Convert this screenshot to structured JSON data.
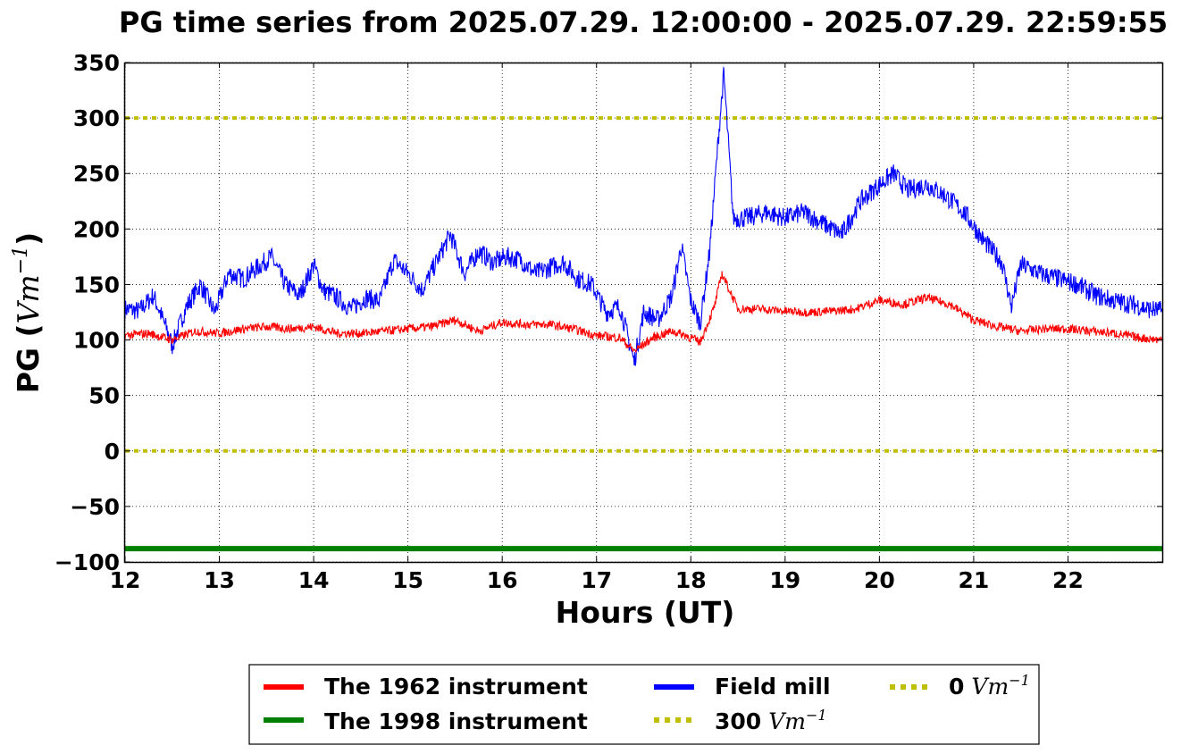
{
  "chart_data": {
    "type": "line",
    "title": "PG time series from 2025.07.29. 12:00:00 - 2025.07.29. 22:59:55",
    "xlabel": "Hours (UT)",
    "ylabel": "PG (Vm⁻¹)",
    "xlim": [
      12,
      23
    ],
    "ylim": [
      -100,
      350
    ],
    "xticks": [
      12,
      13,
      14,
      15,
      16,
      17,
      18,
      19,
      20,
      21,
      22
    ],
    "yticks": [
      -100,
      -50,
      0,
      50,
      100,
      150,
      200,
      250,
      300,
      350
    ],
    "ytick_labels": [
      "−100",
      "−50",
      "0",
      "50",
      "100",
      "150",
      "200",
      "250",
      "300",
      "350"
    ],
    "grid": true,
    "legend_position": "bottom-center, below plot, 3 columns",
    "series": [
      {
        "name": "The 1962 instrument",
        "color": "#ff0000",
        "style": "solid",
        "x": [
          12.0,
          12.25,
          12.5,
          12.75,
          13.0,
          13.25,
          13.5,
          13.75,
          14.0,
          14.25,
          14.5,
          14.75,
          15.0,
          15.25,
          15.5,
          15.75,
          16.0,
          16.25,
          16.5,
          16.75,
          17.0,
          17.25,
          17.4,
          17.6,
          17.8,
          17.95,
          18.1,
          18.25,
          18.33,
          18.5,
          18.75,
          19.0,
          19.25,
          19.5,
          19.75,
          20.0,
          20.25,
          20.5,
          20.75,
          21.0,
          21.25,
          21.5,
          21.75,
          22.0,
          22.25,
          22.5,
          22.75,
          23.0
        ],
        "y": [
          104,
          106,
          100,
          108,
          106,
          110,
          112,
          110,
          112,
          106,
          106,
          108,
          110,
          112,
          118,
          108,
          116,
          114,
          114,
          110,
          104,
          102,
          90,
          102,
          108,
          104,
          98,
          130,
          160,
          128,
          128,
          126,
          125,
          126,
          128,
          136,
          132,
          138,
          132,
          118,
          112,
          108,
          110,
          110,
          108,
          106,
          102,
          100
        ]
      },
      {
        "name": "The 1998 instrument",
        "color": "#008000",
        "style": "solid",
        "x": [
          12.0,
          23.0
        ],
        "y": [
          -88,
          -88
        ]
      },
      {
        "name": "Field mill",
        "color": "#0000ff",
        "style": "solid",
        "x": [
          12.0,
          12.15,
          12.3,
          12.45,
          12.5,
          12.65,
          12.8,
          12.95,
          13.1,
          13.25,
          13.4,
          13.55,
          13.7,
          13.85,
          14.0,
          14.1,
          14.25,
          14.4,
          14.55,
          14.7,
          14.85,
          15.0,
          15.15,
          15.3,
          15.45,
          15.6,
          15.75,
          15.9,
          16.05,
          16.2,
          16.35,
          16.5,
          16.65,
          16.8,
          16.95,
          17.1,
          17.25,
          17.4,
          17.5,
          17.65,
          17.8,
          17.9,
          18.0,
          18.1,
          18.2,
          18.3,
          18.35,
          18.45,
          18.6,
          18.8,
          19.0,
          19.2,
          19.4,
          19.6,
          19.8,
          20.0,
          20.15,
          20.3,
          20.5,
          20.7,
          20.9,
          21.1,
          21.3,
          21.4,
          21.5,
          21.7,
          21.9,
          22.1,
          22.3,
          22.5,
          22.7,
          22.85,
          23.0
        ],
        "y": [
          128,
          126,
          140,
          108,
          95,
          130,
          150,
          125,
          160,
          155,
          165,
          175,
          150,
          140,
          168,
          145,
          138,
          128,
          138,
          135,
          172,
          160,
          145,
          170,
          195,
          160,
          180,
          170,
          175,
          172,
          160,
          165,
          170,
          155,
          150,
          125,
          130,
          80,
          125,
          118,
          140,
          185,
          135,
          115,
          180,
          290,
          340,
          210,
          210,
          215,
          210,
          215,
          205,
          195,
          225,
          240,
          250,
          235,
          240,
          230,
          215,
          190,
          170,
          130,
          168,
          160,
          155,
          150,
          140,
          135,
          132,
          128,
          126
        ]
      },
      {
        "name": "300 Vm⁻¹",
        "color": "#bfbf00",
        "style": "dotted",
        "x": [
          12.0,
          23.0
        ],
        "y": [
          300,
          300
        ]
      },
      {
        "name": "0 Vm⁻¹",
        "color": "#bfbf00",
        "style": "dotted",
        "x": [
          12.0,
          23.0
        ],
        "y": [
          0,
          0
        ]
      }
    ],
    "legend": [
      {
        "label": "The 1962 instrument",
        "color": "#ff0000",
        "style": "solid"
      },
      {
        "label": "The 1998 instrument",
        "color": "#008000",
        "style": "solid"
      },
      {
        "label": "Field mill",
        "color": "#0000ff",
        "style": "solid"
      },
      {
        "label": "300",
        "unit": "Vm",
        "exp": "−1",
        "color": "#bfbf00",
        "style": "dotted"
      },
      {
        "label": "0",
        "unit": "Vm",
        "exp": "−1",
        "color": "#bfbf00",
        "style": "dotted"
      }
    ],
    "ylabel_parts": {
      "text": "PG (",
      "unit": "Vm",
      "exp": "−1",
      "close": ")"
    }
  }
}
